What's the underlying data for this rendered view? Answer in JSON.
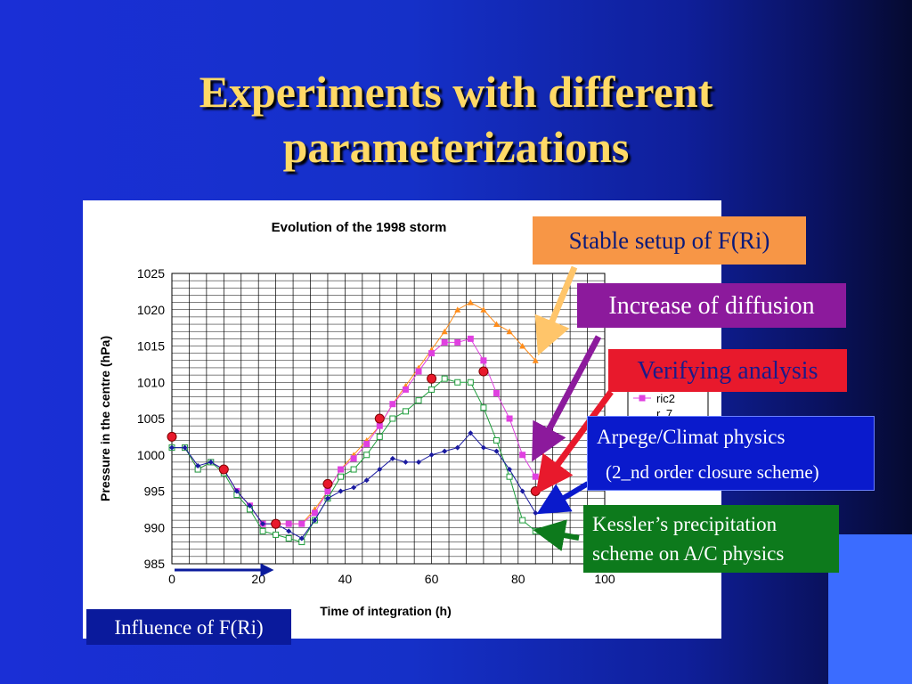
{
  "slide": {
    "title_line1": "Experiments with different",
    "title_line2": "parameterizations"
  },
  "callouts": {
    "stable": "Stable setup of F(Ri)",
    "increase": "Increase of diffusion",
    "verify": "Verifying analysis",
    "arpege_l1": "Arpege/Climat physics",
    "arpege_l2": "(2_nd order closure scheme)",
    "kessler_l1": "Kessler’s precipitation",
    "kessler_l2": "scheme on A/C physics",
    "influence": "Influence of  F(Ri)"
  },
  "colors": {
    "stable": "#f79646",
    "increase": "#8c1a9c",
    "verify": "#e8192c",
    "arpege": "#0a1acc",
    "kessler": "#0d7a1c",
    "influence": "#0a1a9c",
    "title": "#ffd966"
  },
  "chart_data": {
    "type": "line",
    "title": "Evolution of the 1998 storm",
    "xlabel": "Time of integration (h)",
    "ylabel": "Pressure in the centre (hPa)",
    "xlim": [
      0,
      100
    ],
    "ylim": [
      985,
      1025
    ],
    "xticks": [
      0,
      20,
      40,
      60,
      80,
      100
    ],
    "yticks": [
      985,
      990,
      995,
      1000,
      1005,
      1010,
      1015,
      1020,
      1025
    ],
    "grid": true,
    "legend_visible": [
      "ric2",
      "r..7"
    ],
    "series": [
      {
        "name": "",
        "color": "#ff8c1a",
        "marker": "triangle",
        "x": [
          0,
          3,
          6,
          9,
          12,
          15,
          18,
          21,
          24,
          27,
          30,
          33,
          36,
          39,
          42,
          45,
          48,
          51,
          54,
          57,
          60,
          63,
          66,
          69,
          72,
          75,
          78,
          81,
          84
        ],
        "y": [
          1001,
          1001,
          998,
          999,
          998,
          995,
          993,
          990.5,
          990.5,
          990.5,
          990.5,
          992.5,
          995,
          998,
          1000,
          1002,
          1004,
          1007,
          1009.5,
          1012,
          1014.5,
          1017,
          1020,
          1021,
          1020,
          1018,
          1017,
          1015,
          1013
        ]
      },
      {
        "name": "ric2",
        "color": "#e040e0",
        "marker": "square",
        "x": [
          0,
          3,
          6,
          9,
          12,
          15,
          18,
          21,
          24,
          27,
          30,
          33,
          36,
          39,
          42,
          45,
          48,
          51,
          54,
          57,
          60,
          63,
          66,
          69,
          72,
          75,
          78,
          81,
          84
        ],
        "y": [
          1001,
          1001,
          998,
          999,
          998,
          995,
          993,
          990.5,
          990.5,
          990.5,
          990.5,
          992,
          995,
          998,
          999.5,
          1001.5,
          1004,
          1007,
          1009,
          1011.5,
          1014,
          1015.5,
          1015.5,
          1016,
          1013,
          1008.5,
          1005,
          1000,
          997
        ]
      },
      {
        "name": "",
        "color": "#1e9e3c",
        "marker": "square-open",
        "x": [
          0,
          3,
          6,
          9,
          12,
          15,
          18,
          21,
          24,
          27,
          30,
          33,
          36,
          39,
          42,
          45,
          48,
          51,
          54,
          57,
          60,
          63,
          66,
          69,
          72,
          75,
          78,
          81,
          84
        ],
        "y": [
          1001,
          1001,
          998,
          999,
          997.5,
          994.5,
          992.5,
          989.5,
          989,
          988.5,
          988,
          991,
          994,
          997,
          998,
          1000,
          1002.5,
          1005,
          1006,
          1007.5,
          1009,
          1010.5,
          1010,
          1010,
          1006.5,
          1002,
          997,
          991,
          989.5
        ]
      },
      {
        "name": "",
        "color": "#1a1aa0",
        "marker": "diamond",
        "x": [
          0,
          3,
          6,
          9,
          12,
          15,
          18,
          21,
          24,
          27,
          30,
          33,
          36,
          39,
          42,
          45,
          48,
          51,
          54,
          57,
          60,
          63,
          66,
          69,
          72,
          75,
          78,
          81,
          84
        ],
        "y": [
          1001,
          1001,
          998.5,
          999,
          998,
          995,
          993,
          990.5,
          990.5,
          989.5,
          988.5,
          991,
          994,
          995,
          995.5,
          996.5,
          998,
          999.5,
          999,
          999,
          1000,
          1000.5,
          1001,
          1003,
          1001,
          1000.5,
          998,
          995,
          992
        ]
      }
    ],
    "analysis_points": {
      "name": "",
      "color": "#e8192c",
      "x": [
        0,
        12,
        24,
        36,
        48,
        60,
        72,
        84
      ],
      "y": [
        1002.5,
        998,
        990.5,
        996,
        1005,
        1010.5,
        1011.5,
        995
      ]
    }
  }
}
